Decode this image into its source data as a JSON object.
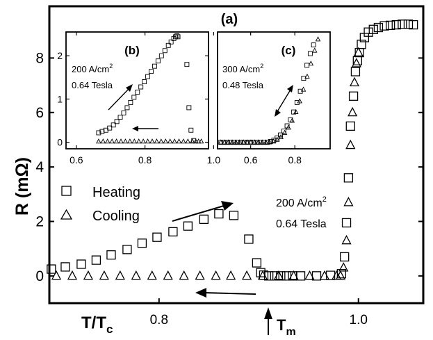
{
  "chart_data": [
    {
      "id": "main",
      "type": "scatter",
      "panel_label": "(a)",
      "xlabel": "T/T",
      "xlabel_sub": "c",
      "ylabel": "R (mΩ)",
      "xlim": [
        0.69,
        1.065
      ],
      "ylim": [
        -1.0,
        9.9
      ],
      "x_ticks": [
        0.8,
        1.0
      ],
      "x_tick_labels": [
        "0.8",
        "1.0"
      ],
      "y_ticks": [
        0,
        2,
        4,
        6,
        8
      ],
      "y_tick_labels": [
        "0",
        "2",
        "4",
        "6",
        "8"
      ],
      "grid": false,
      "legend_position": "middle-left",
      "series": [
        {
          "name": "Heating",
          "marker": "square",
          "x": [
            0.692,
            0.706,
            0.722,
            0.737,
            0.752,
            0.768,
            0.783,
            0.798,
            0.814,
            0.829,
            0.845,
            0.86,
            0.875,
            0.89,
            0.898,
            0.902,
            0.905,
            0.91,
            0.916,
            0.922,
            0.928,
            0.934,
            0.942,
            0.958,
            0.972,
            0.983,
            0.986,
            0.988,
            0.99,
            0.992,
            0.995,
            0.997,
            0.999,
            1.001,
            1.003,
            1.006,
            1.01,
            1.015,
            1.02,
            1.026,
            1.032,
            1.038,
            1.044,
            1.05,
            1.055
          ],
          "y": [
            0.25,
            0.33,
            0.43,
            0.58,
            0.77,
            0.97,
            1.2,
            1.42,
            1.62,
            1.83,
            2.08,
            2.28,
            2.22,
            1.35,
            0.48,
            0.12,
            0.03,
            0.0,
            0.0,
            0.0,
            0.0,
            0.0,
            0.0,
            0.0,
            0.02,
            0.08,
            0.7,
            1.95,
            3.6,
            5.5,
            6.6,
            7.5,
            7.9,
            8.2,
            8.5,
            8.75,
            8.95,
            9.05,
            9.12,
            9.18,
            9.2,
            9.22,
            9.24,
            9.24,
            9.22
          ]
        },
        {
          "name": "Cooling",
          "marker": "triangle",
          "x": [
            0.697,
            0.713,
            0.729,
            0.745,
            0.761,
            0.777,
            0.793,
            0.809,
            0.825,
            0.841,
            0.857,
            0.872,
            0.888,
            0.904,
            0.92,
            0.935,
            0.951,
            0.966,
            0.978,
            0.982,
            0.985,
            0.988,
            0.99,
            0.992,
            0.994,
            0.996,
            0.998,
            1.0
          ],
          "y": [
            0.0,
            0.0,
            0.0,
            0.0,
            0.0,
            0.0,
            0.0,
            0.0,
            0.0,
            0.0,
            0.0,
            0.0,
            0.0,
            0.0,
            0.0,
            0.0,
            0.0,
            0.0,
            0.0,
            0.0,
            0.3,
            1.3,
            2.7,
            4.8,
            6.0,
            7.1,
            7.8,
            8.2
          ]
        }
      ],
      "annotations": {
        "current": "200 A/cm",
        "current_sup": "2",
        "field": "0.64 Tesla",
        "tm_label": "T",
        "tm_sub": "m"
      }
    },
    {
      "id": "inset_b",
      "type": "scatter",
      "panel_label": "(b)",
      "xlim": [
        0.57,
        0.985
      ],
      "ylim": [
        -0.15,
        2.55
      ],
      "x_ticks": [
        0.6,
        0.8,
        1.0
      ],
      "x_tick_labels": [
        "0.6",
        "0.8",
        "1.0"
      ],
      "y_ticks": [
        0,
        1,
        2
      ],
      "y_tick_labels": [
        "0",
        "1",
        "2"
      ],
      "annotations": {
        "current": "200 A/cm",
        "current_sup": "2",
        "field": "0.64 Tesla"
      },
      "series": [
        {
          "name": "Heating",
          "marker": "square",
          "x": [
            0.665,
            0.675,
            0.686,
            0.697,
            0.708,
            0.718,
            0.728,
            0.738,
            0.748,
            0.758,
            0.768,
            0.778,
            0.788,
            0.798,
            0.808,
            0.818,
            0.828,
            0.838,
            0.848,
            0.858,
            0.868,
            0.876,
            0.884,
            0.889,
            0.893,
            0.896,
            0.922,
            0.928,
            0.934,
            0.942
          ],
          "y": [
            0.22,
            0.25,
            0.28,
            0.33,
            0.4,
            0.48,
            0.58,
            0.68,
            0.8,
            0.92,
            1.04,
            1.16,
            1.28,
            1.4,
            1.52,
            1.64,
            1.76,
            1.88,
            2.0,
            2.12,
            2.24,
            2.32,
            2.4,
            2.44,
            2.46,
            2.44,
            1.8,
            0.8,
            0.28,
            0.04
          ]
        },
        {
          "name": "Cooling",
          "marker": "triangle",
          "x": [
            0.665,
            0.678,
            0.691,
            0.704,
            0.717,
            0.73,
            0.743,
            0.756,
            0.769,
            0.782,
            0.795,
            0.808,
            0.821,
            0.834,
            0.847,
            0.86,
            0.873,
            0.886,
            0.899,
            0.912,
            0.925,
            0.938,
            0.948,
            0.956,
            0.964
          ],
          "y": [
            0.02,
            0.02,
            0.02,
            0.02,
            0.02,
            0.02,
            0.02,
            0.02,
            0.02,
            0.02,
            0.02,
            0.02,
            0.02,
            0.02,
            0.02,
            0.02,
            0.02,
            0.02,
            0.02,
            0.02,
            0.02,
            0.02,
            0.02,
            0.02,
            0.02
          ]
        }
      ]
    },
    {
      "id": "inset_c",
      "type": "scatter",
      "panel_label": "(c)",
      "xlim": [
        0.45,
        0.96
      ],
      "ylim": [
        -0.15,
        2.55
      ],
      "x_ticks": [
        0.6,
        0.8
      ],
      "x_tick_labels": [
        "0.6",
        "0.8"
      ],
      "annotations": {
        "current": "300 A/cm",
        "current_sup": "2",
        "field": "0.48 Tesla"
      },
      "series": [
        {
          "name": "Heating",
          "marker": "square",
          "x": [
            0.465,
            0.48,
            0.495,
            0.51,
            0.525,
            0.54,
            0.555,
            0.57,
            0.585,
            0.6,
            0.615,
            0.63,
            0.645,
            0.66,
            0.675,
            0.69,
            0.705,
            0.72,
            0.735,
            0.75,
            0.765,
            0.78,
            0.795,
            0.81,
            0.825,
            0.84,
            0.855,
            0.87,
            0.885
          ],
          "y": [
            0.0,
            0.0,
            0.0,
            0.0,
            0.0,
            0.0,
            0.0,
            0.0,
            0.0,
            0.0,
            0.0,
            0.0,
            0.0,
            0.0,
            0.0,
            0.02,
            0.05,
            0.1,
            0.17,
            0.26,
            0.38,
            0.52,
            0.7,
            0.92,
            1.18,
            1.48,
            1.78,
            2.05,
            2.25
          ]
        },
        {
          "name": "Cooling",
          "marker": "triangle",
          "x": [
            0.465,
            0.482,
            0.499,
            0.516,
            0.533,
            0.55,
            0.567,
            0.584,
            0.601,
            0.618,
            0.635,
            0.652,
            0.669,
            0.686,
            0.703,
            0.72,
            0.737,
            0.754,
            0.771,
            0.788,
            0.805,
            0.822,
            0.839,
            0.856,
            0.873,
            0.89,
            0.905
          ],
          "y": [
            0.0,
            0.0,
            0.0,
            0.0,
            0.0,
            0.0,
            0.0,
            0.0,
            0.0,
            0.0,
            0.0,
            0.0,
            0.0,
            0.0,
            0.02,
            0.06,
            0.12,
            0.22,
            0.34,
            0.5,
            0.7,
            0.95,
            1.22,
            1.52,
            1.82,
            2.12,
            2.38
          ]
        }
      ]
    }
  ]
}
